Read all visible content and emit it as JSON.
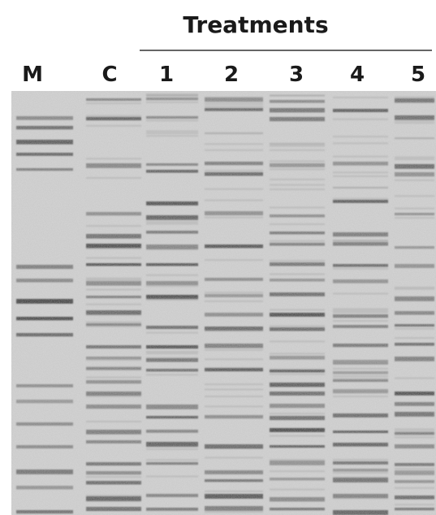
{
  "header": {
    "title": "Treatments"
  },
  "lanes": [
    "M",
    "C",
    "1",
    "2",
    "3",
    "4",
    "5"
  ]
}
